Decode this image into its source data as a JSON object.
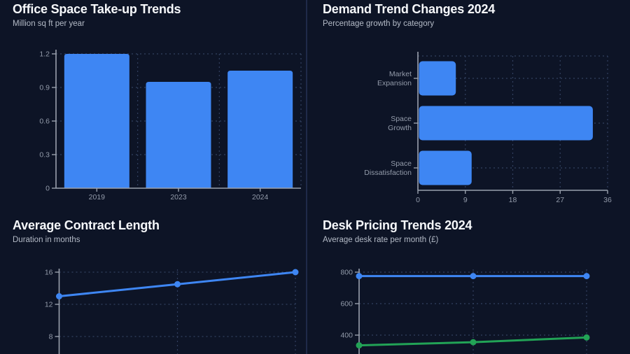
{
  "theme": {
    "background": "#0d1426",
    "divider_color": "#1f2a49",
    "axis_color": "#9aa1ad",
    "grid_color": "#32405f",
    "tick_text_color": "#939baa",
    "title_color": "#f6f8fb",
    "subtitle_color": "#b4bbc7",
    "accent_blue": "#3e86f3",
    "accent_green": "#22a356"
  },
  "chart_data": [
    {
      "id": "office-takeup",
      "type": "bar",
      "title": "Office Space Take-up Trends",
      "subtitle": "Million sq ft per year",
      "categories": [
        "2019",
        "2023",
        "2024"
      ],
      "values": [
        1.2,
        0.95,
        1.05
      ],
      "yticks": [
        0,
        0.3,
        0.6,
        0.9,
        1.2
      ],
      "ylim": [
        0,
        1.2
      ],
      "bar_color": "#3e86f3",
      "grid": true,
      "legend": "none"
    },
    {
      "id": "demand-trend",
      "type": "bar-horizontal",
      "title": "Demand Trend Changes 2024",
      "subtitle": "Percentage growth by category",
      "categories": [
        [
          "Market",
          "Expansion"
        ],
        [
          "Space",
          "Growth"
        ],
        [
          "Space",
          "Dissatisfaction"
        ]
      ],
      "values": [
        7,
        33,
        10
      ],
      "xticks": [
        0,
        9,
        18,
        27,
        36
      ],
      "xlim": [
        0,
        36
      ],
      "bar_color": "#3e86f3",
      "grid": true,
      "legend": "none"
    },
    {
      "id": "contract-length",
      "type": "line",
      "title": "Average Contract Length",
      "subtitle": "Duration in months",
      "series": [
        {
          "name": "contract-months",
          "color": "#3e86f3",
          "values": [
            13,
            14.5,
            16
          ]
        }
      ],
      "yticks": [
        16,
        12,
        8
      ],
      "ytick_step": 4,
      "grid": true,
      "legend": "none",
      "x_labels_visible": false
    },
    {
      "id": "desk-pricing",
      "type": "line",
      "title": "Desk Pricing Trends 2024",
      "subtitle": "Average desk rate per month (£)",
      "series": [
        {
          "name": "blue-series",
          "color": "#3e86f3",
          "values": [
            775,
            775,
            775
          ]
        },
        {
          "name": "green-series",
          "color": "#22a356",
          "values": [
            335,
            355,
            385
          ]
        }
      ],
      "yticks": [
        800,
        600,
        400
      ],
      "ytick_step": 200,
      "grid": true,
      "legend": "none",
      "x_labels_visible": false
    }
  ]
}
